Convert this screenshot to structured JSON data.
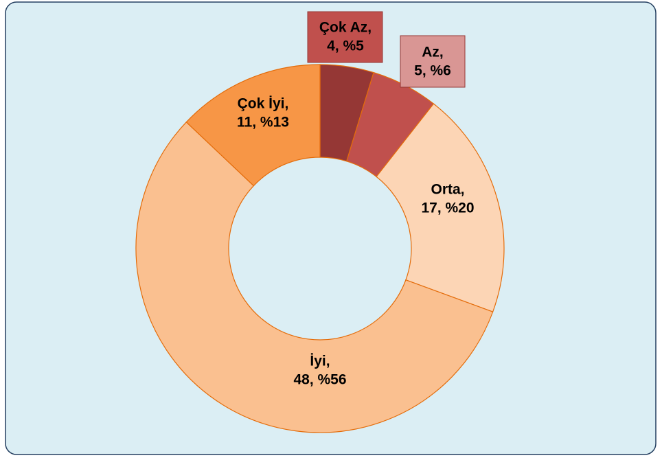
{
  "chart_data": {
    "type": "donut",
    "categories": [
      "Çok Az,",
      "Az,",
      "Orta,",
      "İyi,",
      "Çok İyi,"
    ],
    "values": [
      4,
      5,
      17,
      48,
      11
    ],
    "value_labels": [
      "4, %5",
      "5, %6",
      "17, %20",
      "48, %56",
      "11, %13"
    ],
    "colors": [
      "#953735",
      "#c0504d",
      "#fcd5b5",
      "#fac090",
      "#f79646"
    ]
  }
}
